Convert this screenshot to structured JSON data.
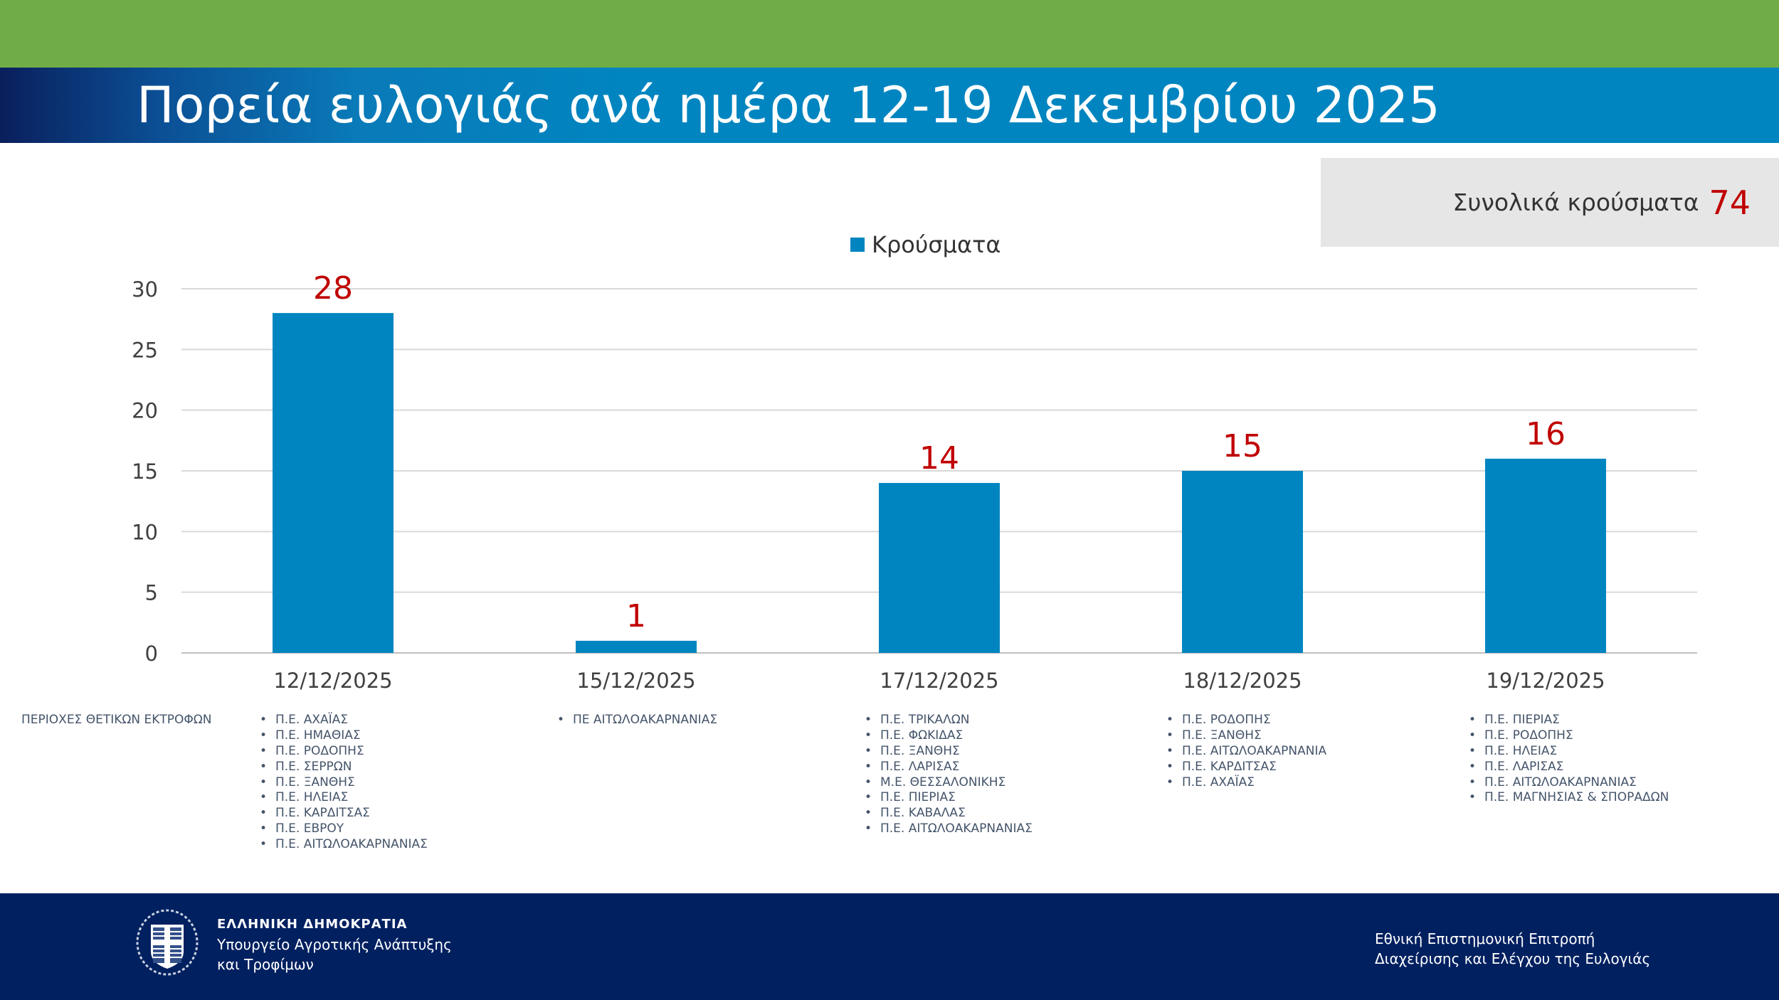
{
  "header": {
    "title": "Πορεία ευλογιάς ανά ημέρα 12-19 Δεκεμβρίου 2025"
  },
  "total": {
    "label": "Συνολικά κρούσματα",
    "value": "74"
  },
  "colors": {
    "bar": "#0085c0",
    "data_label": "#c00000",
    "top_band": "#70ad47",
    "footer": "#002060"
  },
  "chart_data": {
    "type": "bar",
    "categories": [
      "12/12/2025",
      "15/12/2025",
      "17/12/2025",
      "18/12/2025",
      "19/12/2025"
    ],
    "series": [
      {
        "name": "Κρούσματα",
        "values": [
          28,
          1,
          14,
          15,
          16
        ]
      }
    ],
    "data_labels": [
      "28",
      "1",
      "14",
      "15",
      "16"
    ],
    "ylim": [
      0,
      30
    ],
    "yticks": [
      "0",
      "5",
      "10",
      "15",
      "20",
      "25",
      "30"
    ],
    "grid": true,
    "legend": "top-center"
  },
  "regions": {
    "label": "ΠΕΡΙΟΧΕΣ ΘΕΤΙΚΩΝ ΕΚΤΡΟΦΩΝ",
    "columns": [
      [
        "Π.Ε. ΑΧΑΪΑΣ",
        "Π.Ε. ΗΜΑΘΙΑΣ",
        "Π.Ε. ΡΟΔΟΠΗΣ",
        "Π.Ε. ΣΕΡΡΩΝ",
        "Π.Ε. ΞΑΝΘΗΣ",
        "Π.Ε. ΗΛΕΙΑΣ",
        "Π.Ε. ΚΑΡΔΙΤΣΑΣ",
        "Π.Ε. ΕΒΡΟΥ",
        "Π.Ε. ΑΙΤΩΛΟΑΚΑΡΝΑΝΙΑΣ"
      ],
      [
        "ΠΕ ΑΙΤΩΛΟΑΚΑΡΝΑΝΙΑΣ"
      ],
      [
        "Π.Ε. ΤΡΙΚΑΛΩΝ",
        "Π.Ε. ΦΩΚΙΔΑΣ",
        "Π.Ε. ΞΑΝΘΗΣ",
        "Π.Ε. ΛΑΡΙΣΑΣ",
        "Μ.Ε. ΘΕΣΣΑΛΟΝΙΚΗΣ",
        "Π.Ε. ΠΙΕΡΙΑΣ",
        "Π.Ε. ΚΑΒΑΛΑΣ",
        "Π.Ε. ΑΙΤΩΛΟΑΚΑΡΝΑΝΙΑΣ"
      ],
      [
        "Π.Ε. ΡΟΔΟΠΗΣ",
        "Π.Ε. ΞΑΝΘΗΣ",
        "Π.Ε. ΑΙΤΩΛΟΑΚΑΡΝΑΝΙΑ",
        "Π.Ε. ΚΑΡΔΙΤΣΑΣ",
        "Π.Ε. ΑΧΑΪΑΣ"
      ],
      [
        "Π.Ε. ΠΙΕΡΙΑΣ",
        "Π.Ε. ΡΟΔΟΠΗΣ",
        "Π.Ε. ΗΛΕΙΑΣ",
        "Π.Ε. ΛΑΡΙΣΑΣ",
        "Π.Ε. ΑΙΤΩΛΟΑΚΑΡΝΑΝΙΑΣ",
        "Π.Ε. ΜΑΓΝΗΣΙΑΣ & ΣΠΟΡΑΔΩΝ"
      ]
    ]
  },
  "footer": {
    "republic": "ΕΛΛΗΝΙΚΗ ΔΗΜΟΚΡΑΤΙΑ",
    "ministry_line1": "Υπουργείο Αγροτικής Ανάπτυξης",
    "ministry_line2": "και Τροφίμων",
    "committee_line1": "Εθνική Επιστημονική Επιτροπή",
    "committee_line2": "Διαχείρισης και Ελέγχου της Ευλογιάς"
  }
}
